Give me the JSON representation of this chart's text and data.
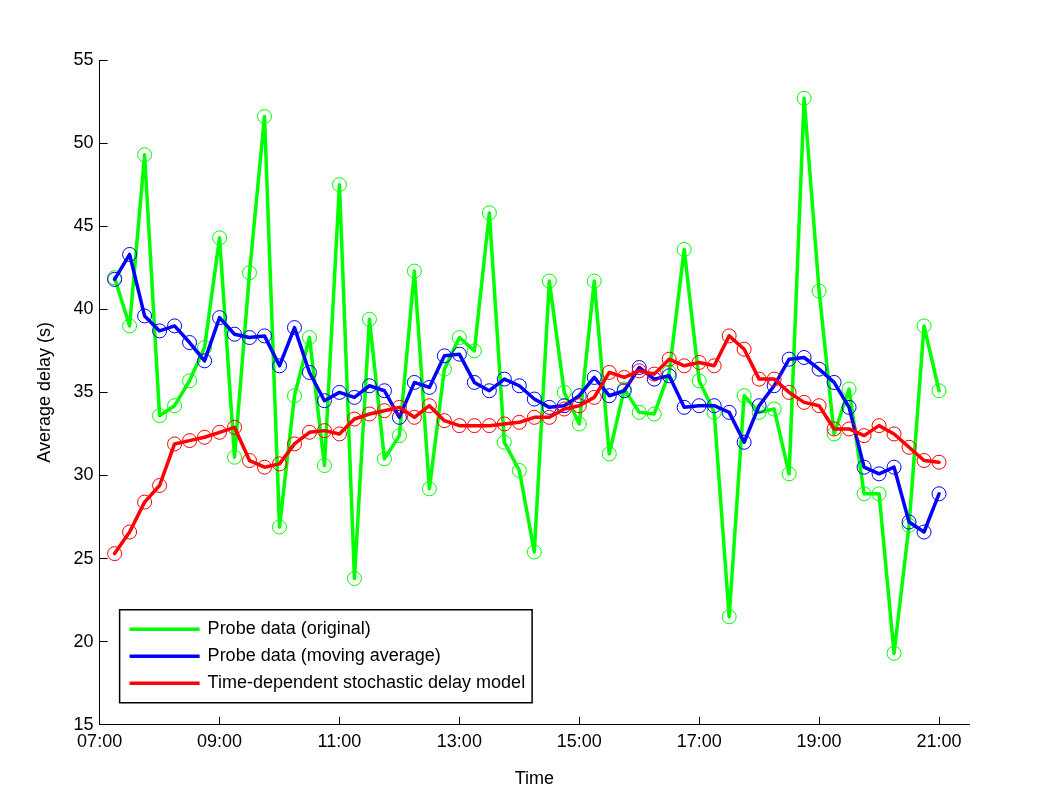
{
  "chart_data": {
    "type": "line",
    "xlabel": "Time",
    "ylabel": "Average delay (s)",
    "x": [
      7.25,
      7.5,
      7.75,
      8,
      8.25,
      8.5,
      8.75,
      9,
      9.25,
      9.5,
      9.75,
      10,
      10.25,
      10.5,
      10.75,
      11,
      11.25,
      11.5,
      11.75,
      12,
      12.25,
      12.5,
      12.75,
      13,
      13.25,
      13.5,
      13.75,
      14,
      14.25,
      14.5,
      14.75,
      15,
      15.25,
      15.5,
      15.75,
      16,
      16.25,
      16.5,
      16.75,
      17,
      17.25,
      17.5,
      17.75,
      18,
      18.25,
      18.5,
      18.75,
      19,
      19.25,
      19.5,
      19.75,
      20,
      20.25,
      20.5,
      20.75,
      21
    ],
    "series": [
      {
        "name": "Probe data (original)",
        "color": "#00ff00",
        "values": [
          41.9,
          39.0,
          49.3,
          33.6,
          34.2,
          35.7,
          37.7,
          44.3,
          31.1,
          42.2,
          51.6,
          26.9,
          34.8,
          38.3,
          30.6,
          47.5,
          23.8,
          39.4,
          31.0,
          32.4,
          42.3,
          29.2,
          36.4,
          38.3,
          37.5,
          45.8,
          32.0,
          30.3,
          25.4,
          41.7,
          35.0,
          33.1,
          41.7,
          31.3,
          35.2,
          33.8,
          33.7,
          36.2,
          43.6,
          35.7,
          33.8,
          21.5,
          34.8,
          33.8,
          34.0,
          30.1,
          52.7,
          41.1,
          32.5,
          35.2,
          28.9,
          28.9,
          19.3,
          27.0,
          39.0,
          35.1
        ]
      },
      {
        "name": "Probe data (moving average)",
        "color": "#0000ff",
        "values": [
          41.8,
          43.3,
          39.6,
          38.7,
          39.0,
          38.0,
          36.9,
          39.5,
          38.5,
          38.3,
          38.4,
          36.6,
          38.9,
          36.2,
          34.5,
          35.0,
          34.7,
          35.4,
          35.1,
          33.5,
          35.6,
          35.3,
          37.2,
          37.3,
          35.6,
          35.1,
          35.8,
          35.4,
          34.6,
          34.1,
          34.2,
          34.8,
          35.9,
          34.8,
          35.1,
          36.5,
          35.8,
          36.0,
          34.1,
          34.2,
          34.2,
          33.8,
          32.0,
          34.2,
          35.4,
          37.0,
          37.1,
          36.4,
          35.6,
          34.1,
          30.5,
          30.1,
          30.5,
          27.2,
          26.6,
          28.9
        ]
      },
      {
        "name": "Time-dependent stochastic delay model",
        "color": "#ff0000",
        "values": [
          25.3,
          26.6,
          28.4,
          29.4,
          31.9,
          32.1,
          32.3,
          32.6,
          32.9,
          30.9,
          30.5,
          30.7,
          31.9,
          32.6,
          32.7,
          32.5,
          33.4,
          33.7,
          33.9,
          34.1,
          33.5,
          34.2,
          33.3,
          33.0,
          33.0,
          33.0,
          33.1,
          33.2,
          33.5,
          33.5,
          34.0,
          34.2,
          34.7,
          36.2,
          35.9,
          36.3,
          36.1,
          37.0,
          36.6,
          36.8,
          36.6,
          38.4,
          37.6,
          35.8,
          35.8,
          35.0,
          34.4,
          34.2,
          32.8,
          32.8,
          32.4,
          33.0,
          32.5,
          31.7,
          30.9,
          30.8
        ]
      }
    ],
    "xlim": [
      7,
      21.5
    ],
    "xticks": [
      {
        "value": 7,
        "label": "07:00"
      },
      {
        "value": 9,
        "label": "09:00"
      },
      {
        "value": 11,
        "label": "11:00"
      },
      {
        "value": 13,
        "label": "13:00"
      },
      {
        "value": 15,
        "label": "15:00"
      },
      {
        "value": 17,
        "label": "17:00"
      },
      {
        "value": 19,
        "label": "19:00"
      },
      {
        "value": 21,
        "label": "21:00"
      }
    ],
    "ylim": [
      15,
      55
    ],
    "yticks": [
      15,
      20,
      25,
      30,
      35,
      40,
      45,
      50,
      55
    ],
    "grid": false,
    "legend": "bottom left",
    "marker": "circle",
    "line_style": "solid"
  }
}
